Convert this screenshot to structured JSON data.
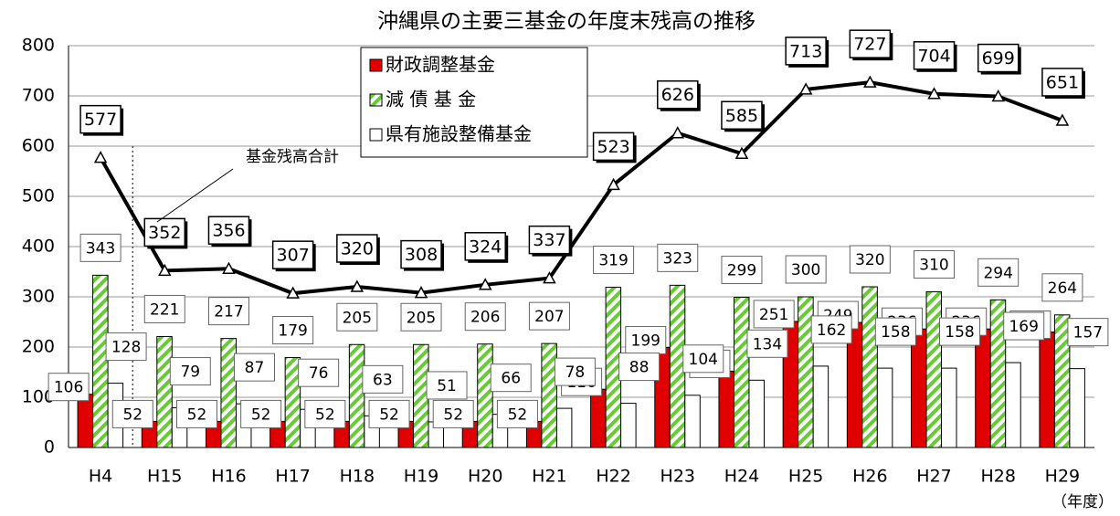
{
  "chart_data": {
    "type": "bar",
    "title": "沖縄県の主要三基金の年度末残高の推移",
    "categories": [
      "H4",
      "H15",
      "H16",
      "H17",
      "H18",
      "H19",
      "H20",
      "H21",
      "H22",
      "H23",
      "H24",
      "H25",
      "H26",
      "H27",
      "H28",
      "H29"
    ],
    "series": [
      {
        "name": "財政調整基金",
        "color": "#e00000",
        "values": [
          106,
          52,
          52,
          52,
          52,
          52,
          52,
          52,
          116,
          199,
          152,
          251,
          249,
          236,
          236,
          230
        ]
      },
      {
        "name": "減 債 基 金",
        "color": "#66cc33",
        "pattern": "hatch",
        "values": [
          343,
          221,
          217,
          179,
          205,
          205,
          206,
          207,
          319,
          323,
          299,
          300,
          320,
          310,
          294,
          264
        ]
      },
      {
        "name": "県有施設整備基金",
        "color": "#ffffff",
        "values": [
          128,
          79,
          87,
          76,
          63,
          51,
          66,
          78,
          88,
          104,
          134,
          162,
          158,
          158,
          169,
          157
        ]
      },
      {
        "type": "line",
        "color": "#000000",
        "values": [
          577,
          352,
          356,
          307,
          320,
          308,
          324,
          337,
          523,
          626,
          585,
          713,
          727,
          704,
          699,
          651
        ]
      }
    ],
    "annotation": "基金残高合計",
    "x_unit_label": "（年度）",
    "ylim": [
      0,
      800
    ],
    "yticks": [
      0,
      100,
      200,
      300,
      400,
      500,
      600,
      700,
      800
    ],
    "grid": true
  }
}
